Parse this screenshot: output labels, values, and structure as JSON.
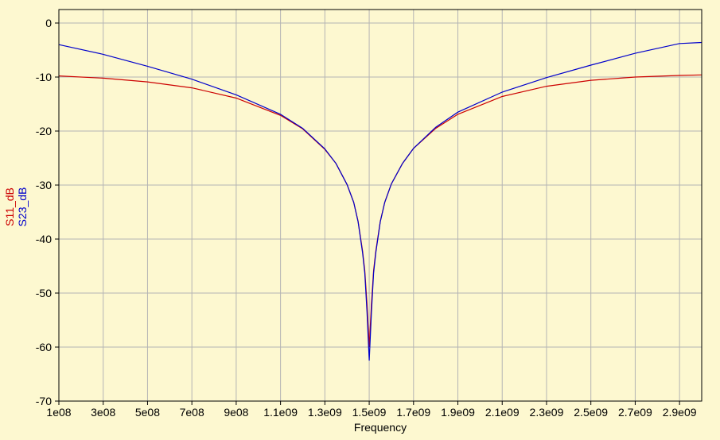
{
  "chart_data": {
    "type": "line",
    "xlabel": "Frequency",
    "xlim": [
      100000000,
      3000000000
    ],
    "ylim": [
      -70,
      2.5
    ],
    "x_ticks": [
      {
        "value": 100000000,
        "label": "1e08"
      },
      {
        "value": 300000000,
        "label": "3e08"
      },
      {
        "value": 500000000,
        "label": "5e08"
      },
      {
        "value": 700000000,
        "label": "7e08"
      },
      {
        "value": 900000000,
        "label": "9e08"
      },
      {
        "value": 1100000000,
        "label": "1.1e09"
      },
      {
        "value": 1300000000,
        "label": "1.3e09"
      },
      {
        "value": 1500000000,
        "label": "1.5e09"
      },
      {
        "value": 1700000000,
        "label": "1.7e09"
      },
      {
        "value": 1900000000,
        "label": "1.9e09"
      },
      {
        "value": 2100000000,
        "label": "2.1e09"
      },
      {
        "value": 2300000000,
        "label": "2.3e09"
      },
      {
        "value": 2500000000,
        "label": "2.5e09"
      },
      {
        "value": 2700000000,
        "label": "2.7e09"
      },
      {
        "value": 2900000000,
        "label": "2.9e09"
      }
    ],
    "y_ticks": [
      {
        "value": 0,
        "label": "0"
      },
      {
        "value": -10,
        "label": "-10"
      },
      {
        "value": -20,
        "label": "-20"
      },
      {
        "value": -30,
        "label": "-30"
      },
      {
        "value": -40,
        "label": "-40"
      },
      {
        "value": -50,
        "label": "-50"
      },
      {
        "value": -60,
        "label": "-60"
      },
      {
        "value": -70,
        "label": "-70"
      }
    ],
    "grid": true,
    "series": [
      {
        "name": "S11_dB",
        "color": "#cc0000",
        "x": [
          100000000,
          300000000,
          500000000,
          700000000,
          900000000,
          1100000000,
          1200000000,
          1300000000,
          1350000000,
          1400000000,
          1430000000,
          1450000000,
          1470000000,
          1480000000,
          1490000000,
          1495000000,
          1500000000,
          1505000000,
          1510000000,
          1520000000,
          1530000000,
          1550000000,
          1570000000,
          1600000000,
          1650000000,
          1700000000,
          1800000000,
          1900000000,
          2100000000,
          2300000000,
          2500000000,
          2700000000,
          2900000000,
          3000000000
        ],
        "y": [
          -9.8,
          -10.2,
          -10.9,
          -12.0,
          -13.9,
          -17.1,
          -19.6,
          -23.4,
          -26.0,
          -29.9,
          -33.2,
          -36.7,
          -42.2,
          -45.8,
          -52.0,
          -56.0,
          -60.0,
          -56.0,
          -52.0,
          -45.8,
          -42.2,
          -36.7,
          -33.2,
          -29.8,
          -26.0,
          -23.2,
          -19.5,
          -16.9,
          -13.6,
          -11.7,
          -10.6,
          -10.0,
          -9.7,
          -9.6
        ]
      },
      {
        "name": "S23_dB",
        "color": "#0000cc",
        "x": [
          100000000,
          300000000,
          500000000,
          700000000,
          900000000,
          1100000000,
          1200000000,
          1300000000,
          1350000000,
          1400000000,
          1430000000,
          1450000000,
          1470000000,
          1480000000,
          1490000000,
          1495000000,
          1500000000,
          1505000000,
          1510000000,
          1520000000,
          1530000000,
          1550000000,
          1570000000,
          1600000000,
          1650000000,
          1700000000,
          1800000000,
          1900000000,
          2100000000,
          2300000000,
          2500000000,
          2700000000,
          2900000000,
          3000000000
        ],
        "y": [
          -4.0,
          -5.8,
          -8.0,
          -10.4,
          -13.3,
          -16.9,
          -19.5,
          -23.3,
          -26.0,
          -29.9,
          -33.2,
          -36.8,
          -42.5,
          -46.3,
          -53.5,
          -58.0,
          -62.5,
          -58.0,
          -53.5,
          -46.3,
          -42.5,
          -36.8,
          -33.2,
          -29.8,
          -26.0,
          -23.2,
          -19.3,
          -16.5,
          -12.8,
          -10.1,
          -7.8,
          -5.6,
          -3.8,
          -3.6
        ]
      }
    ]
  }
}
